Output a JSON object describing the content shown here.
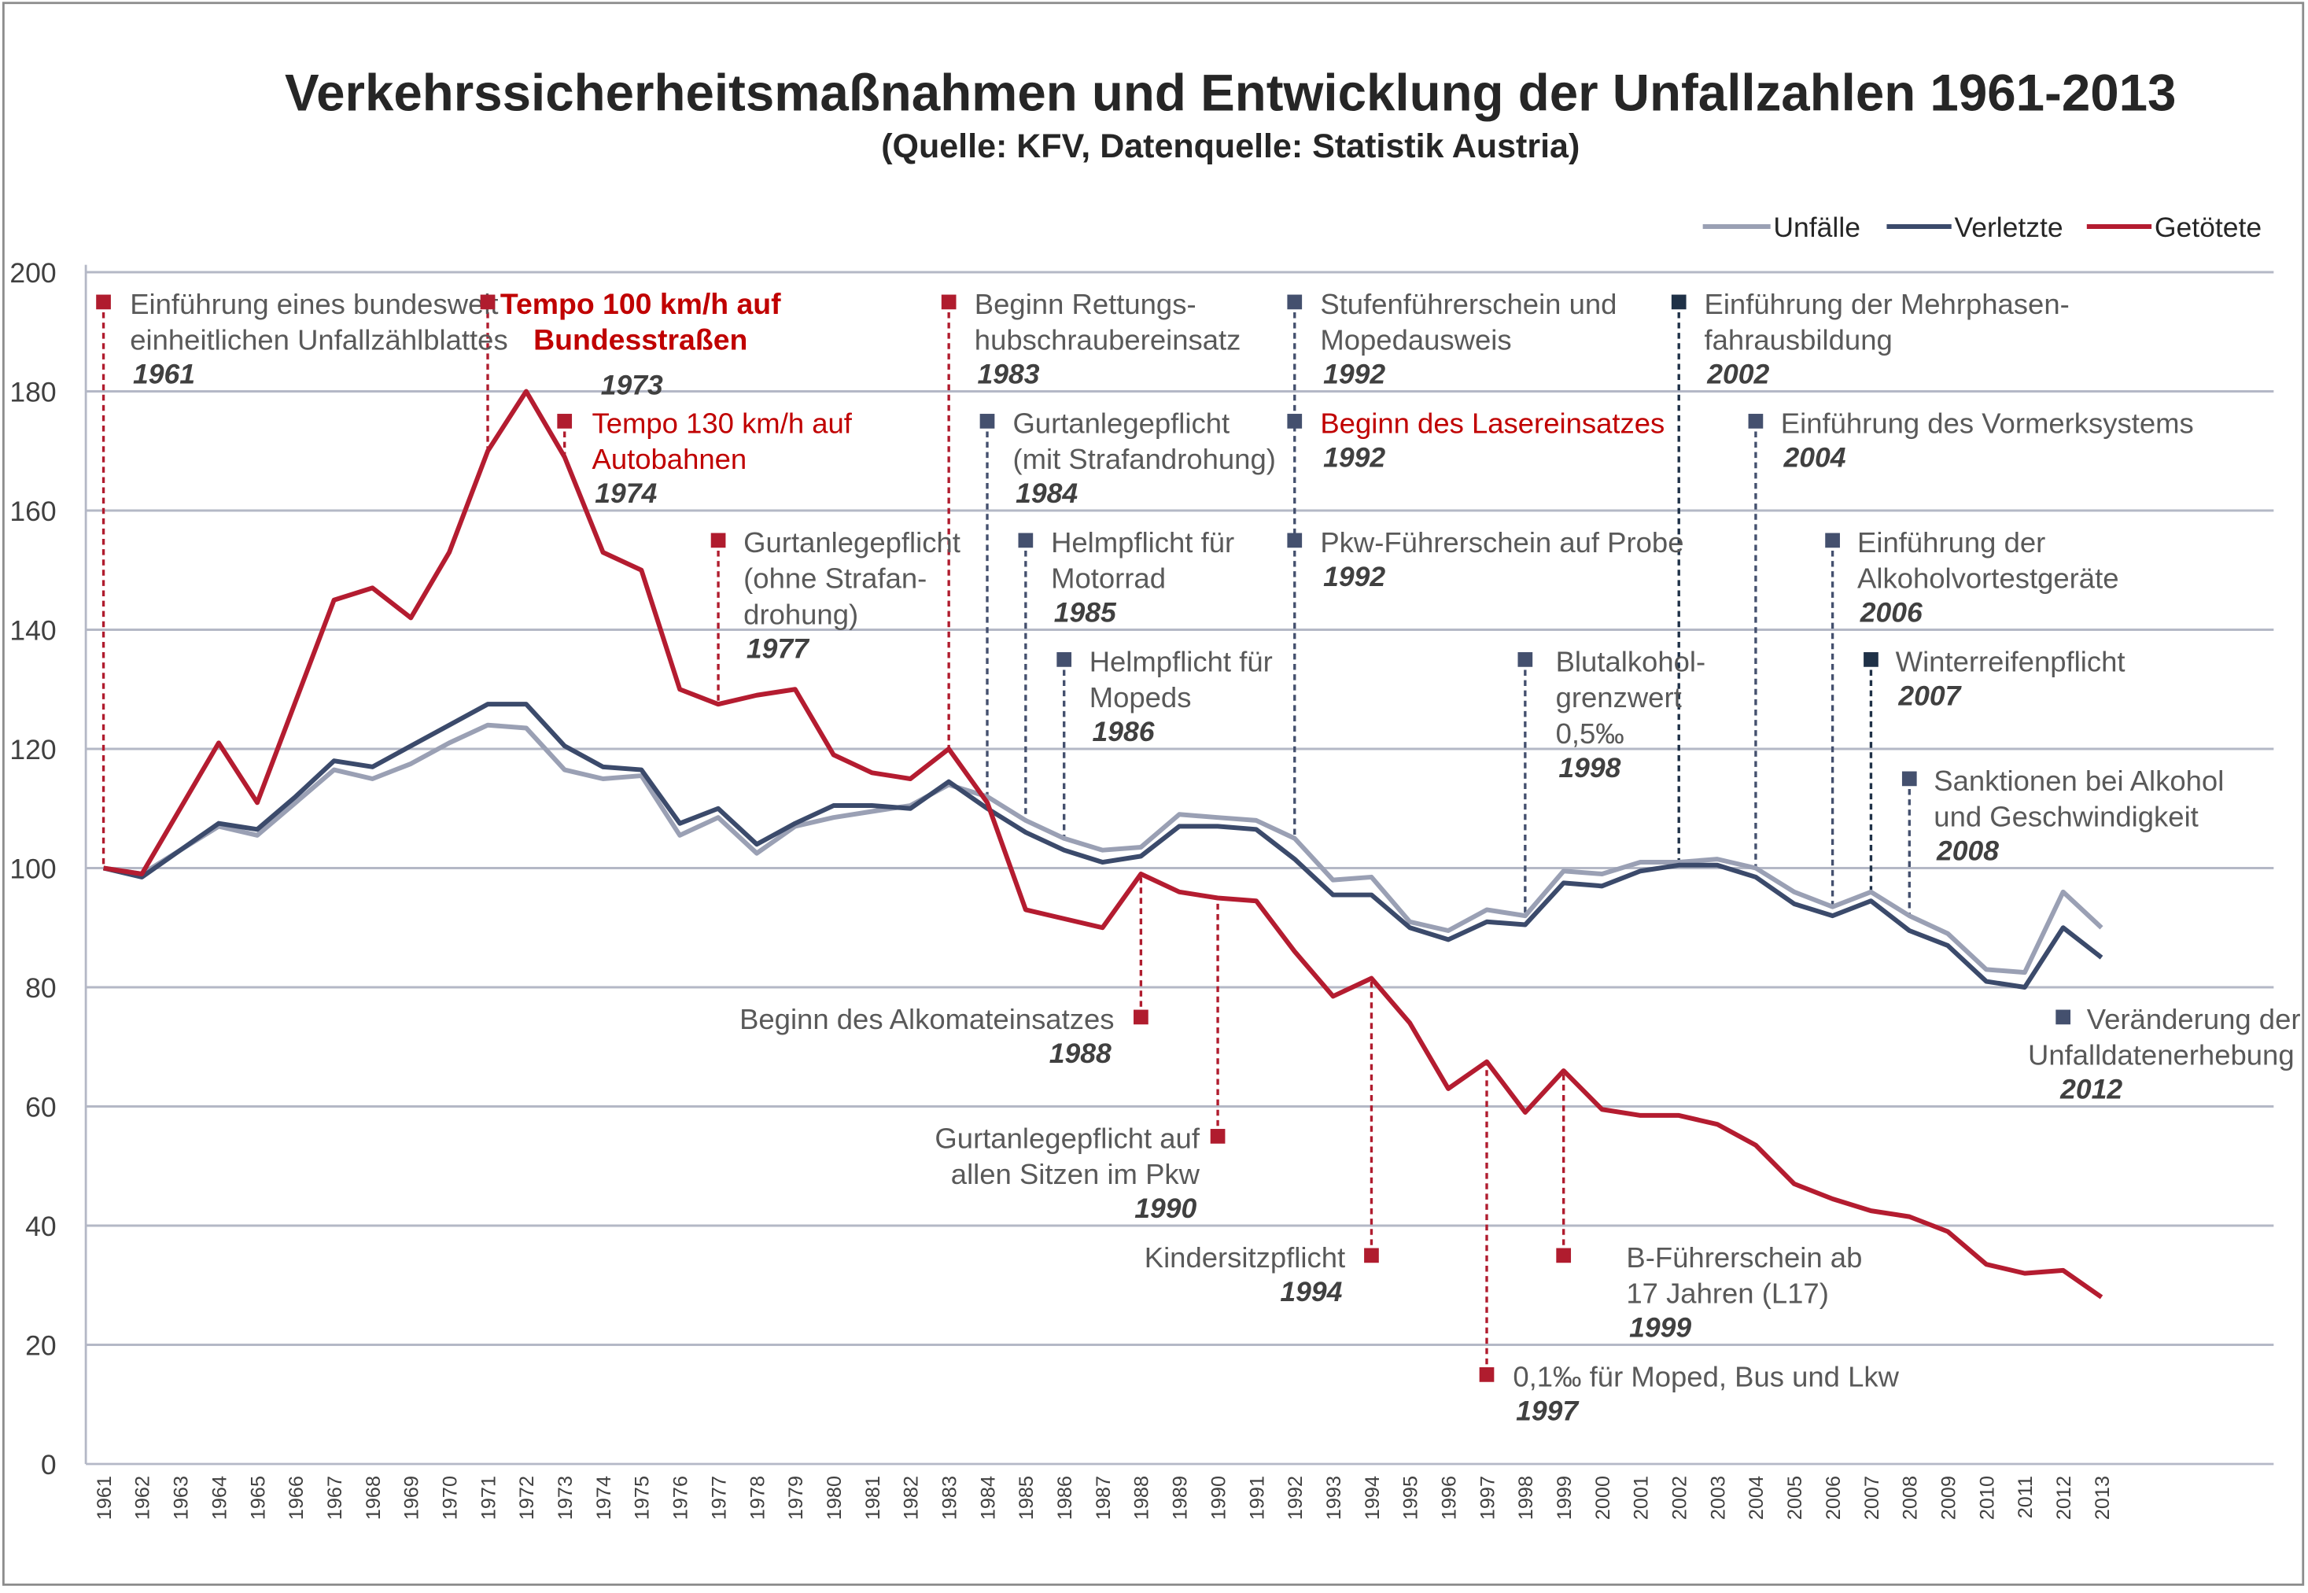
{
  "chart_data": {
    "type": "line",
    "title": "Verkehrssicherheitsmaßnahmen und Entwicklung der Unfallzahlen 1961-2013",
    "subtitle": "(Quelle: KFV, Datenquelle: Statistik Austria)",
    "xlabel": "",
    "ylabel": "",
    "ylim": [
      0,
      200
    ],
    "yticks": [
      0,
      20,
      40,
      60,
      80,
      100,
      120,
      140,
      160,
      180,
      200
    ],
    "grid": "horizontal",
    "legend_position": "top-right",
    "x": [
      1961,
      1962,
      1963,
      1964,
      1965,
      1966,
      1967,
      1968,
      1969,
      1970,
      1971,
      1972,
      1973,
      1974,
      1975,
      1976,
      1977,
      1978,
      1979,
      1980,
      1981,
      1982,
      1983,
      1984,
      1985,
      1986,
      1987,
      1988,
      1989,
      1990,
      1991,
      1992,
      1993,
      1994,
      1995,
      1996,
      1997,
      1998,
      1999,
      2000,
      2001,
      2002,
      2003,
      2004,
      2005,
      2006,
      2007,
      2008,
      2009,
      2010,
      2011,
      2012,
      2013
    ],
    "series": [
      {
        "name": "Unfälle",
        "color": "#9aa0b4",
        "values": [
          100,
          99,
          103,
          107,
          105.5,
          111,
          116.5,
          115,
          117.5,
          121,
          124,
          123.5,
          116.5,
          115,
          115.5,
          105.5,
          108.5,
          102.5,
          107,
          108.5,
          109.5,
          110.5,
          114,
          112,
          108,
          105,
          103,
          103.5,
          109,
          108.5,
          108,
          105,
          98,
          98.5,
          91,
          89.5,
          93,
          92,
          99.5,
          99,
          101,
          101,
          101.5,
          100,
          96,
          93.5,
          96,
          92,
          89,
          83,
          82.5,
          96,
          90
        ]
      },
      {
        "name": "Verletzte",
        "color": "#3b4a6b",
        "values": [
          100,
          98.5,
          103,
          107.5,
          106.5,
          112,
          118,
          117,
          120.5,
          124,
          127.5,
          127.5,
          120.5,
          117,
          116.5,
          107.5,
          110,
          104,
          107.5,
          110.5,
          110.5,
          110,
          114.5,
          110,
          106,
          103,
          101,
          102,
          107,
          107,
          106.5,
          101.5,
          95.5,
          95.5,
          90,
          88,
          91,
          90.5,
          97.5,
          97,
          99.5,
          100.5,
          100.5,
          98.5,
          94,
          92,
          94.5,
          89.5,
          87,
          81,
          80,
          90,
          85
        ]
      },
      {
        "name": "Getötete",
        "color": "#b41c30",
        "values": [
          100,
          99,
          110,
          121,
          111,
          128,
          145,
          147,
          142,
          153,
          170,
          180,
          169,
          153,
          150,
          130,
          127.5,
          129,
          130,
          119,
          116,
          115,
          120,
          111,
          93,
          91.5,
          90,
          99,
          96,
          95,
          94.5,
          86,
          78.5,
          81.5,
          74,
          63,
          67.5,
          59,
          66,
          59.5,
          58.5,
          58.5,
          57,
          53.5,
          47,
          44.5,
          42.5,
          41.5,
          39,
          33.5,
          32,
          32.5,
          28
        ]
      }
    ],
    "annotations": [
      {
        "year": "1961",
        "lines": [
          "Einführung eines bundesweit",
          "einheitlichen Unfallzählblattes"
        ],
        "marker_color": "#b01c2e",
        "text_color": "#595959"
      },
      {
        "year": "1973",
        "lines": [
          "Tempo 100 km/h auf",
          "Bundesstraßen"
        ],
        "marker_color": "#b01c2e",
        "text_color": "#c00000",
        "bold": true
      },
      {
        "year": "1974",
        "lines": [
          "Tempo 130 km/h auf",
          "Autobahnen"
        ],
        "marker_color": "#b01c2e",
        "text_color": "#c00000"
      },
      {
        "year": "1977",
        "lines": [
          "Gurtanlegepflicht",
          "(ohne Strafan-",
          "drohung)"
        ],
        "marker_color": "#b01c2e",
        "text_color": "#595959"
      },
      {
        "year": "1983",
        "lines": [
          "Beginn Rettungs-",
          "hubschraubereinsatz"
        ],
        "marker_color": "#b01c2e",
        "text_color": "#595959"
      },
      {
        "year": "1984",
        "lines": [
          "Gurtanlegepflicht",
          "(mit Strafandrohung)"
        ],
        "marker_color": "#44506e",
        "text_color": "#595959"
      },
      {
        "year": "1985",
        "lines": [
          "Helmpflicht für",
          "Motorrad"
        ],
        "marker_color": "#44506e",
        "text_color": "#595959"
      },
      {
        "year": "1986",
        "lines": [
          "Helmpflicht für",
          "Mopeds"
        ],
        "marker_color": "#44506e",
        "text_color": "#595959"
      },
      {
        "year": "1988",
        "lines": [
          "Beginn des Alkomateinsatzes"
        ],
        "marker_color": "#b01c2e",
        "text_color": "#595959"
      },
      {
        "year": "1990",
        "lines": [
          "Gurtanlegepflicht auf",
          "allen Sitzen im Pkw"
        ],
        "marker_color": "#b01c2e",
        "text_color": "#595959"
      },
      {
        "year": "1992",
        "lines": [
          "Stufenführerschein und",
          "Mopedausweis"
        ],
        "marker_color": "#44506e",
        "text_color": "#595959"
      },
      {
        "year": "1992",
        "lines": [
          "Beginn des Lasereinsatzes"
        ],
        "marker_color": "#44506e",
        "text_color": "#c00000"
      },
      {
        "year": "1992",
        "lines": [
          "Pkw-Führerschein auf Probe"
        ],
        "marker_color": "#44506e",
        "text_color": "#595959"
      },
      {
        "year": "1994",
        "lines": [
          "Kindersitzpflicht"
        ],
        "marker_color": "#b01c2e",
        "text_color": "#595959"
      },
      {
        "year": "1997",
        "lines": [
          "0,1‰ für Moped, Bus und Lkw"
        ],
        "marker_color": "#b01c2e",
        "text_color": "#595959"
      },
      {
        "year": "1998",
        "lines": [
          "Blutalkohol-",
          "grenzwert",
          "0,5‰"
        ],
        "marker_color": "#44506e",
        "text_color": "#595959"
      },
      {
        "year": "1999",
        "lines": [
          "B-Führerschein ab",
          "17 Jahren (L17)"
        ],
        "marker_color": "#b01c2e",
        "text_color": "#595959"
      },
      {
        "year": "2002",
        "lines": [
          "Einführung der Mehrphasen-",
          "fahrausbildung"
        ],
        "marker_color": "#1f3147",
        "text_color": "#595959"
      },
      {
        "year": "2004",
        "lines": [
          "Einführung des Vormerksystems"
        ],
        "marker_color": "#44506e",
        "text_color": "#595959"
      },
      {
        "year": "2006",
        "lines": [
          "Einführung der",
          "Alkoholvortestgeräte"
        ],
        "marker_color": "#44506e",
        "text_color": "#595959"
      },
      {
        "year": "2007",
        "lines": [
          "Winterreifenpflicht"
        ],
        "marker_color": "#1f3147",
        "text_color": "#595959"
      },
      {
        "year": "2008",
        "lines": [
          "Sanktionen bei Alkohol",
          "und Geschwindigkeit"
        ],
        "marker_color": "#44506e",
        "text_color": "#595959"
      },
      {
        "year": "2012",
        "lines": [
          "Veränderung der",
          "Unfalldatenerhebung"
        ],
        "marker_color": "#44506e",
        "text_color": "#595959"
      }
    ]
  }
}
